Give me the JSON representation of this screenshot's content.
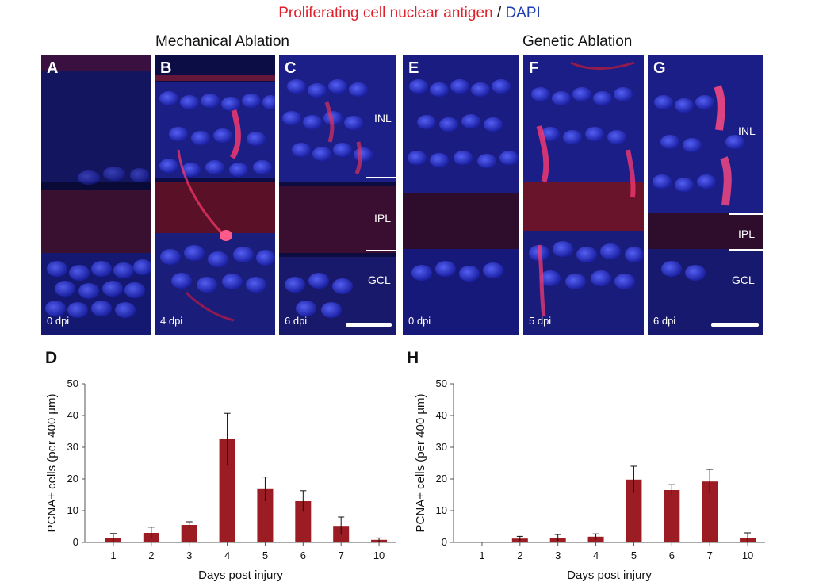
{
  "figure": {
    "title_red": "Proliferating cell nuclear antigen",
    "title_sep": " / ",
    "title_blue": "DAPI",
    "group_left": "Mechanical Ablation",
    "group_right": "Genetic Ablation",
    "colors": {
      "pcna": "#e0202a",
      "dapi": "#1f3fb0",
      "bar": "#9b1c22"
    }
  },
  "panels": [
    {
      "label": "A",
      "time": "0 dpi"
    },
    {
      "label": "B",
      "time": "4 dpi"
    },
    {
      "label": "C",
      "time": "6 dpi",
      "layers": [
        "INL",
        "IPL",
        "GCL"
      ]
    },
    {
      "label": "E",
      "time": "0 dpi"
    },
    {
      "label": "F",
      "time": "5 dpi"
    },
    {
      "label": "G",
      "time": "6 dpi",
      "layers": [
        "INL",
        "IPL",
        "GCL"
      ]
    }
  ],
  "chart_data": [
    {
      "panel": "D",
      "type": "bar",
      "categories": [
        "1",
        "2",
        "3",
        "4",
        "5",
        "6",
        "7",
        "10"
      ],
      "values": [
        1.5,
        3,
        5.5,
        32.5,
        16.8,
        13,
        5.2,
        0.8
      ],
      "errors": [
        1.3,
        1.8,
        1.0,
        8.2,
        3.8,
        3.3,
        2.8,
        0.6
      ],
      "xlabel": "Days post injury",
      "ylabel": "PCNA+ cells (per 400 µm)",
      "ylim": [
        0,
        50
      ],
      "yticks": [
        0,
        10,
        20,
        30,
        40,
        50
      ],
      "grid": false
    },
    {
      "panel": "H",
      "type": "bar",
      "categories": [
        "1",
        "2",
        "3",
        "4",
        "5",
        "6",
        "7",
        "10"
      ],
      "values": [
        0,
        1.2,
        1.5,
        1.8,
        19.8,
        16.5,
        19.2,
        1.5
      ],
      "errors": [
        0,
        0.7,
        1.0,
        0.9,
        4.2,
        1.7,
        3.8,
        1.5
      ],
      "xlabel": "Days post injury",
      "ylabel": "PCNA+ cells (per 400 µm)",
      "ylim": [
        0,
        50
      ],
      "yticks": [
        0,
        10,
        20,
        30,
        40,
        50
      ],
      "grid": false
    }
  ]
}
